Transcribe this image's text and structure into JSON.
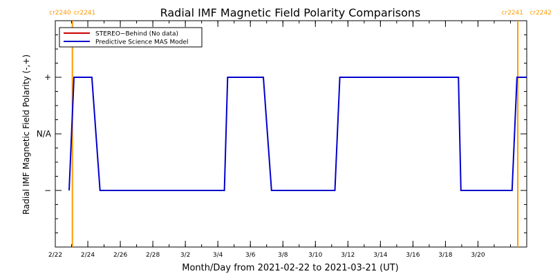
{
  "chart_data": {
    "type": "line",
    "title": "Radial IMF Magnetic Field Polarity Comparisons",
    "xlabel": "Month/Day from 2021-02-22 to 2021-03-21 (UT)",
    "ylabel": "Radial IMF Magnetic Field Polarity (-,+)",
    "x_range_days": [
      0,
      29
    ],
    "x_ticks": [
      {
        "day": 0,
        "label": "2/22"
      },
      {
        "day": 2,
        "label": "2/24"
      },
      {
        "day": 4,
        "label": "2/26"
      },
      {
        "day": 6,
        "label": "2/28"
      },
      {
        "day": 8,
        "label": "3/2"
      },
      {
        "day": 10,
        "label": "3/4"
      },
      {
        "day": 12,
        "label": "3/6"
      },
      {
        "day": 14,
        "label": "3/8"
      },
      {
        "day": 16,
        "label": "3/10"
      },
      {
        "day": 18,
        "label": "3/12"
      },
      {
        "day": 20,
        "label": "3/14"
      },
      {
        "day": 22,
        "label": "3/16"
      },
      {
        "day": 24,
        "label": "3/18"
      },
      {
        "day": 26,
        "label": "3/20"
      }
    ],
    "y_range": [
      -2,
      2
    ],
    "y_ticks": [
      {
        "value": 1,
        "label": "+"
      },
      {
        "value": 0,
        "label": "N/A"
      },
      {
        "value": -1,
        "label": "−"
      }
    ],
    "legend_position": "top-left",
    "series": [
      {
        "name": "STEREO−Behind (No data)",
        "color": "#cc0000",
        "points": []
      },
      {
        "name": "Predictive Science MAS Model",
        "color": "#0000cc",
        "points": [
          [
            0.85,
            -1
          ],
          [
            1.15,
            1
          ],
          [
            2.25,
            1
          ],
          [
            2.75,
            -1
          ],
          [
            10.4,
            -1
          ],
          [
            10.6,
            1
          ],
          [
            12.8,
            1
          ],
          [
            13.3,
            -1
          ],
          [
            17.2,
            -1
          ],
          [
            17.5,
            1
          ],
          [
            24.8,
            1
          ],
          [
            24.95,
            -1
          ],
          [
            28.1,
            -1
          ],
          [
            28.4,
            1
          ],
          [
            29,
            1
          ]
        ]
      }
    ],
    "markers": [
      {
        "day": 1.05,
        "label_left": "cr2240",
        "label_right": "cr2241",
        "color": "#ff9900"
      },
      {
        "day": 28.45,
        "label_left": "cr2241",
        "label_right": "cr2242",
        "color": "#ff9900"
      }
    ]
  }
}
